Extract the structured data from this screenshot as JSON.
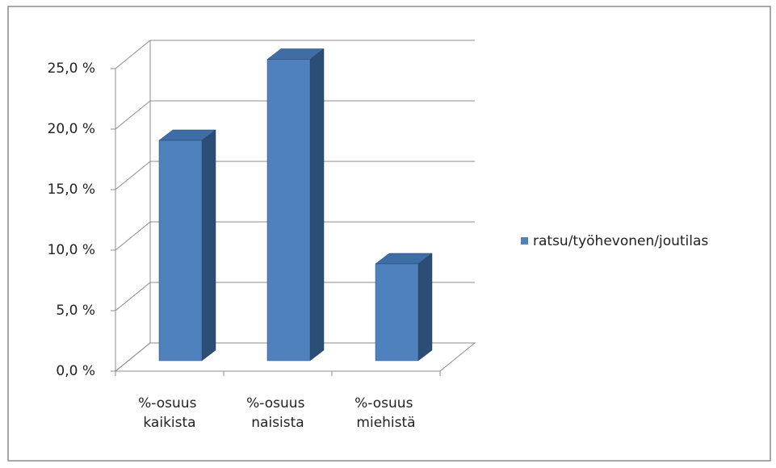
{
  "chart_data": {
    "type": "bar3d",
    "categories": [
      "%-osuus kaikista",
      "%-osuus naisista",
      "%-osuus miehistä"
    ],
    "series": [
      {
        "name": "ratsu/työhevonen/joutilas",
        "color": "#4f81bd",
        "values": [
          18.2,
          24.9,
          8.0
        ]
      }
    ],
    "ylim": [
      0,
      25
    ],
    "yticks": [
      {
        "value": 0,
        "label": "0,0 %"
      },
      {
        "value": 5,
        "label": "5,0 %"
      },
      {
        "value": 10,
        "label": "10,0 %"
      },
      {
        "value": 15,
        "label": "15,0 %"
      },
      {
        "value": 20,
        "label": "20,0 %"
      },
      {
        "value": 25,
        "label": "25,0 %"
      }
    ],
    "grid": true,
    "legend": "right"
  }
}
